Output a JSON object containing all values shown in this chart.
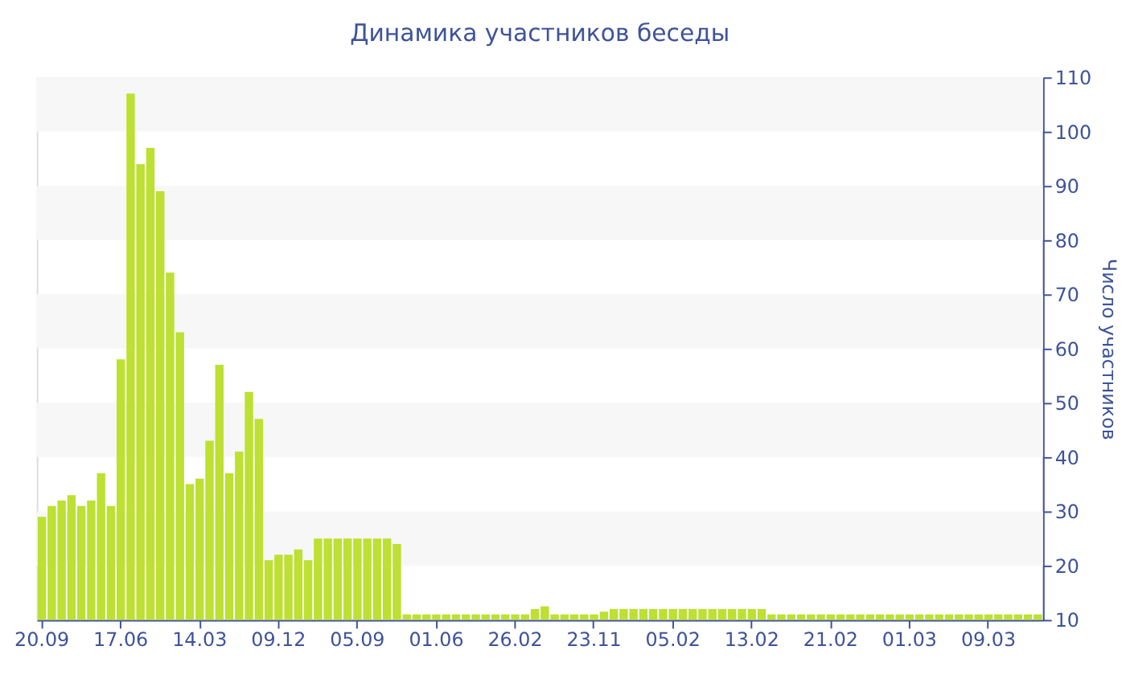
{
  "chart_data": {
    "type": "bar",
    "title": "Динамика участников беседы",
    "ylabel": "Число участников",
    "categories": [
      "20.09",
      null,
      null,
      null,
      null,
      null,
      null,
      null,
      "17.06",
      null,
      null,
      null,
      null,
      null,
      null,
      null,
      "14.03",
      null,
      null,
      null,
      null,
      null,
      null,
      null,
      "09.12",
      null,
      null,
      null,
      null,
      null,
      null,
      null,
      "05.09",
      null,
      null,
      null,
      null,
      null,
      null,
      null,
      "01.06",
      null,
      null,
      null,
      null,
      null,
      null,
      null,
      "26.02",
      null,
      null,
      null,
      null,
      null,
      null,
      null,
      "23.11",
      null,
      null,
      null,
      null,
      null,
      null,
      null,
      "05.02",
      null,
      null,
      null,
      null,
      null,
      null,
      null,
      "13.02",
      null,
      null,
      null,
      null,
      null,
      null,
      null,
      "21.02",
      null,
      null,
      null,
      null,
      null,
      null,
      null,
      "01.03",
      null,
      null,
      null,
      null,
      null,
      null,
      null,
      "09.03",
      null,
      null,
      null,
      null,
      null
    ],
    "values": [
      29,
      31,
      32,
      33,
      31,
      32,
      37,
      31,
      58,
      107,
      94,
      97,
      89,
      74,
      63,
      35,
      36,
      43,
      57,
      37,
      41,
      52,
      47,
      21,
      22,
      22,
      23,
      21,
      25,
      25,
      25,
      25,
      25,
      25,
      25,
      25,
      24,
      11,
      11,
      11,
      11,
      11,
      11,
      11,
      11,
      11,
      11,
      11,
      11,
      11,
      12,
      12.5,
      11,
      11,
      11,
      11,
      11,
      11.5,
      12,
      12,
      12,
      12,
      12,
      12,
      12,
      12,
      12,
      12,
      12,
      12,
      12,
      12,
      12,
      12,
      11,
      11,
      11,
      11,
      11,
      11,
      11,
      11,
      11,
      11,
      11,
      11,
      11,
      11,
      11,
      11,
      11,
      11,
      11,
      11,
      11,
      11,
      11,
      11,
      11,
      11,
      11,
      11
    ],
    "color": "#bde032",
    "ylim": [
      10,
      110
    ],
    "yticks": [
      10,
      20,
      30,
      40,
      50,
      60,
      70,
      80,
      90,
      100,
      110
    ],
    "bands": [
      {
        "axis": "y",
        "from": 20,
        "to": 30,
        "color": "#f7f7f7"
      },
      {
        "axis": "y",
        "from": 40,
        "to": 50,
        "color": "#f7f7f7"
      },
      {
        "axis": "y",
        "from": 60,
        "to": 70,
        "color": "#f7f7f7"
      },
      {
        "axis": "y",
        "from": 80,
        "to": 90,
        "color": "#f7f7f7"
      },
      {
        "axis": "y",
        "from": 100,
        "to": 110,
        "color": "#f7f7f7"
      }
    ]
  }
}
